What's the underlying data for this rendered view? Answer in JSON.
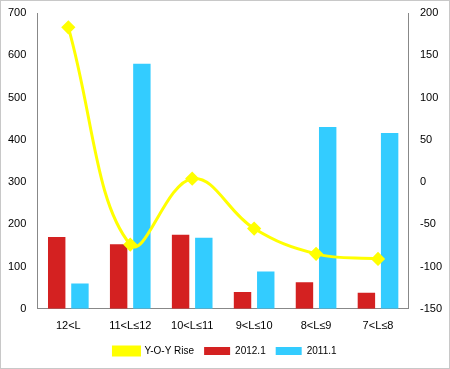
{
  "chart_data": {
    "type": "bar",
    "categories": [
      "12<L",
      "11<L≤12",
      "10<L≤11",
      "9<L≤10",
      "8<L≤9",
      "7<L≤8"
    ],
    "series": [
      {
        "name": "2012.1",
        "color": "#d42121",
        "values": [
          170,
          153,
          175,
          40,
          63,
          38
        ]
      },
      {
        "name": "2011.1",
        "color": "#33ccff",
        "values": [
          60,
          580,
          168,
          88,
          430,
          416
        ]
      },
      {
        "name": "Y-O-Y Rise",
        "type": "line",
        "axis": "y2",
        "color": "#ffff00",
        "marker": "diamond",
        "line_style": "solid",
        "values": [
          183,
          -74,
          4,
          -55,
          -85,
          -91
        ]
      }
    ],
    "ylim": [
      0,
      700
    ],
    "yticks": [
      0,
      100,
      200,
      300,
      400,
      500,
      600,
      700
    ],
    "y2lim": [
      -150,
      200
    ],
    "y2ticks": [
      -150,
      -100,
      -50,
      0,
      50,
      100,
      150,
      200
    ],
    "grid": false,
    "legend": "bottom"
  }
}
